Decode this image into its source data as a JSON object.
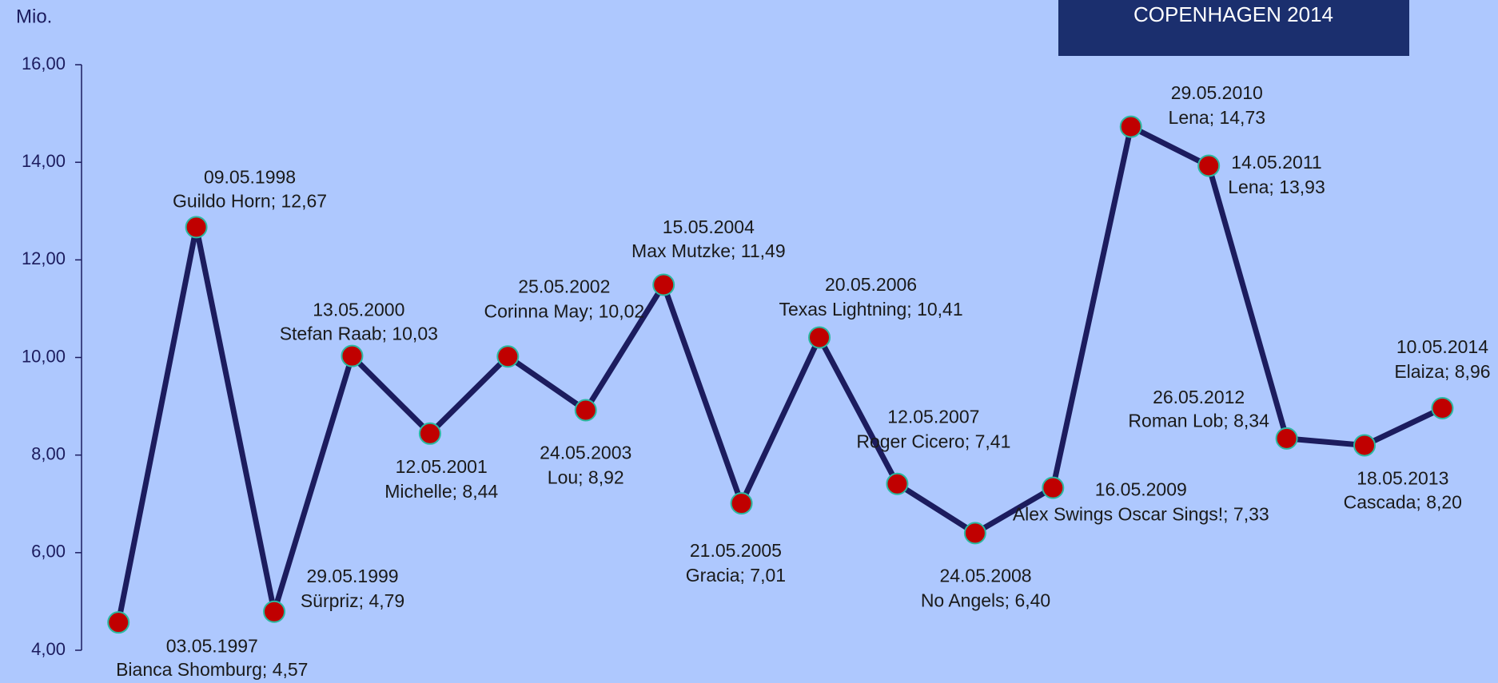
{
  "chart_data": {
    "type": "line",
    "unit_label": "Mio.",
    "logo_text": "COPENHAGEN 2014",
    "categories": [
      "03.05.1997",
      "09.05.1998",
      "29.05.1999",
      "13.05.2000",
      "12.05.2001",
      "25.05.2002",
      "24.05.2003",
      "15.05.2004",
      "21.05.2005",
      "20.05.2006",
      "12.05.2007",
      "24.05.2008",
      "16.05.2009",
      "29.05.2010",
      "14.05.2011",
      "26.05.2012",
      "18.05.2013",
      "10.05.2014"
    ],
    "values": [
      4.57,
      12.67,
      4.79,
      10.03,
      8.44,
      10.02,
      8.92,
      11.49,
      7.01,
      10.41,
      7.41,
      6.4,
      7.33,
      14.73,
      13.93,
      8.34,
      8.2,
      8.96
    ],
    "value_labels": [
      "Bianca Shomburg; 4,57",
      "Guildo Horn; 12,67",
      "Sürpriz; 4,79",
      "Stefan Raab; 10,03",
      "Michelle; 8,44",
      "Corinna May; 10,02",
      "Lou; 8,92",
      "Max Mutzke; 11,49",
      "Gracia; 7,01",
      "Texas Lightning; 10,41",
      "Roger Cicero; 7,41",
      "No Angels; 6,40",
      "Alex Swings Oscar Sings!; 7,33",
      "Lena; 14,73",
      "Lena; 13,93",
      "Roman Lob; 8,34",
      "Cascada; 8,20",
      "Elaiza; 8,96"
    ],
    "color": "#1c1c5e",
    "marker_color": "#c00000",
    "ylim": [
      4,
      16
    ],
    "yticks": [
      {
        "value": 4,
        "label": "4,00"
      },
      {
        "value": 6,
        "label": "6,00"
      },
      {
        "value": 8,
        "label": "8,00"
      },
      {
        "value": 10,
        "label": "10,00"
      },
      {
        "value": 12,
        "label": "12,00"
      },
      {
        "value": 14,
        "label": "14,00"
      },
      {
        "value": 16,
        "label": "16,00"
      }
    ]
  }
}
